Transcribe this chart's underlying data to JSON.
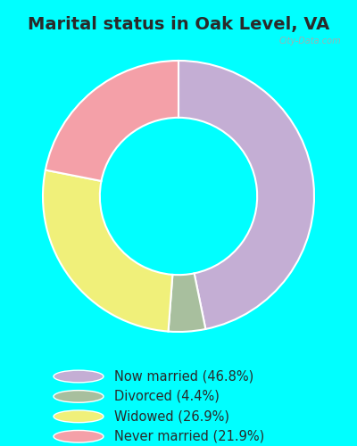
{
  "title": "Marital status in Oak Level, VA",
  "background_color": "#00FFFF",
  "chart_bg_color": "#daeee2",
  "categories": [
    "Now married",
    "Divorced",
    "Widowed",
    "Never married"
  ],
  "values": [
    46.8,
    4.4,
    26.9,
    21.9
  ],
  "colors": [
    "#c4aed4",
    "#a8bf9e",
    "#f0f07a",
    "#f4a0a8"
  ],
  "legend_labels": [
    "Now married (46.8%)",
    "Divorced (4.4%)",
    "Widowed (26.9%)",
    "Never married (21.9%)"
  ],
  "legend_colors": [
    "#c4aed4",
    "#a8bf9e",
    "#f0f07a",
    "#f4a0a8"
  ],
  "watermark": "City-Data.com",
  "title_fontsize": 14,
  "legend_fontsize": 10.5
}
